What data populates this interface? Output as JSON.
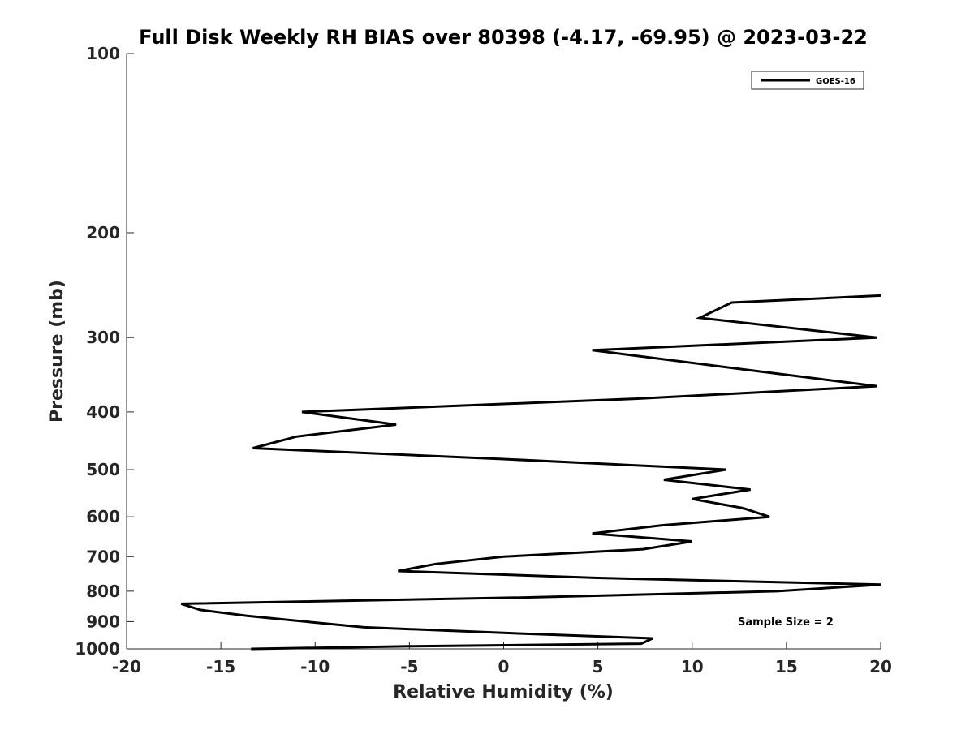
{
  "chart_data": {
    "type": "line",
    "title": "Full Disk Weekly RH BIAS over 80398 (-4.17, -69.95) @ 2023-03-22",
    "xlabel": "Relative Humidity (%)",
    "ylabel": "Pressure (mb)",
    "xlim": [
      -20,
      20
    ],
    "ylim": [
      1000,
      100
    ],
    "y_scale": "log",
    "y_reversed": true,
    "x_ticks": [
      -20,
      -15,
      -10,
      -5,
      0,
      5,
      10,
      15,
      20
    ],
    "x_tick_labels": [
      "-20",
      "-15",
      "-10",
      "-5",
      "0",
      "5",
      "10",
      "15",
      "20"
    ],
    "y_ticks": [
      100,
      200,
      300,
      400,
      500,
      600,
      700,
      800,
      900,
      1000
    ],
    "y_tick_labels": [
      "100",
      "200",
      "300",
      "400",
      "500",
      "600",
      "700",
      "800",
      "900",
      "1000"
    ],
    "grid": false,
    "legend_position": "top-right",
    "annotation": "Sample Size = 2",
    "series": [
      {
        "name": "GOES-16",
        "color": "#000000",
        "points": [
          {
            "x": 20.0,
            "y": 255
          },
          {
            "x": 12.1,
            "y": 262
          },
          {
            "x": 10.4,
            "y": 278
          },
          {
            "x": 19.8,
            "y": 300
          },
          {
            "x": 4.7,
            "y": 315
          },
          {
            "x": 13.6,
            "y": 342
          },
          {
            "x": 19.8,
            "y": 362
          },
          {
            "x": 7.0,
            "y": 380
          },
          {
            "x": -10.7,
            "y": 400
          },
          {
            "x": -5.7,
            "y": 420
          },
          {
            "x": -11.0,
            "y": 440
          },
          {
            "x": -13.3,
            "y": 460
          },
          {
            "x": 0.0,
            "y": 480
          },
          {
            "x": 11.8,
            "y": 500
          },
          {
            "x": 8.5,
            "y": 520
          },
          {
            "x": 13.1,
            "y": 540
          },
          {
            "x": 10.0,
            "y": 560
          },
          {
            "x": 12.7,
            "y": 580
          },
          {
            "x": 14.1,
            "y": 600
          },
          {
            "x": 8.4,
            "y": 620
          },
          {
            "x": 4.7,
            "y": 640
          },
          {
            "x": 10.0,
            "y": 660
          },
          {
            "x": 7.4,
            "y": 680
          },
          {
            "x": 0.0,
            "y": 700
          },
          {
            "x": -3.6,
            "y": 720
          },
          {
            "x": -5.6,
            "y": 740
          },
          {
            "x": 5.0,
            "y": 760
          },
          {
            "x": 20.0,
            "y": 780
          },
          {
            "x": 14.5,
            "y": 800
          },
          {
            "x": 0.9,
            "y": 820
          },
          {
            "x": -17.1,
            "y": 840
          },
          {
            "x": -16.1,
            "y": 860
          },
          {
            "x": -13.6,
            "y": 880
          },
          {
            "x": -10.5,
            "y": 900
          },
          {
            "x": -7.4,
            "y": 920
          },
          {
            "x": 0.0,
            "y": 940
          },
          {
            "x": 7.9,
            "y": 960
          },
          {
            "x": 7.3,
            "y": 980
          },
          {
            "x": -5.0,
            "y": 990
          },
          {
            "x": -13.4,
            "y": 1000
          }
        ]
      }
    ]
  }
}
